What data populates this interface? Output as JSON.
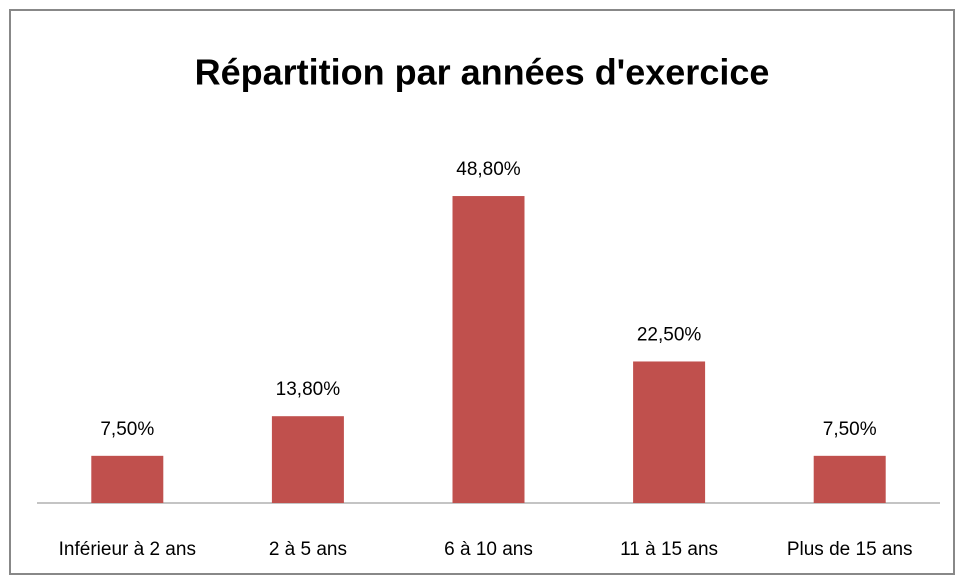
{
  "chart_data": {
    "type": "bar",
    "title": "Répartition par années d'exercice",
    "categories": [
      "Inférieur à 2 ans",
      "2 à 5 ans",
      "6 à 10 ans",
      "11 à 15 ans",
      "Plus de 15 ans"
    ],
    "values": [
      7.5,
      13.8,
      48.8,
      22.5,
      7.5
    ],
    "value_labels": [
      "7,50%",
      "13,80%",
      "48,80%",
      "22,50%",
      "7,50%"
    ],
    "color": "#c0504d"
  }
}
